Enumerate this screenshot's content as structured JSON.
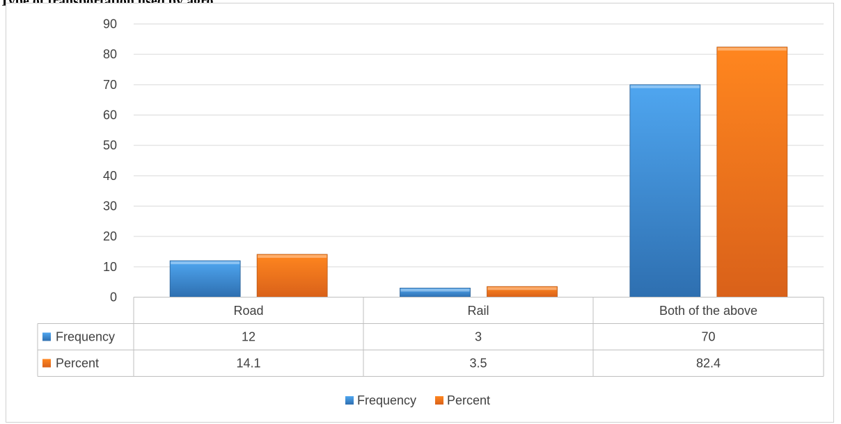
{
  "caption": "Type of transportation used by agro",
  "chart_data": {
    "type": "bar",
    "categories": [
      "Road",
      "Rail",
      "Both of the above"
    ],
    "series": [
      {
        "name": "Frequency",
        "values": [
          12,
          3,
          70
        ],
        "labels": [
          "12",
          "3",
          "70"
        ],
        "color": "#2e75b6"
      },
      {
        "name": "Percent",
        "values": [
          14.1,
          3.5,
          82.4
        ],
        "labels": [
          "14.1",
          "3.5",
          "82.4"
        ],
        "color": "#ed7d31"
      }
    ],
    "ylim": [
      0,
      90
    ],
    "yticks": [
      "0",
      "10",
      "20",
      "30",
      "40",
      "50",
      "60",
      "70",
      "80",
      "90"
    ],
    "grid": true,
    "data_table": true,
    "legend_position": "bottom"
  }
}
